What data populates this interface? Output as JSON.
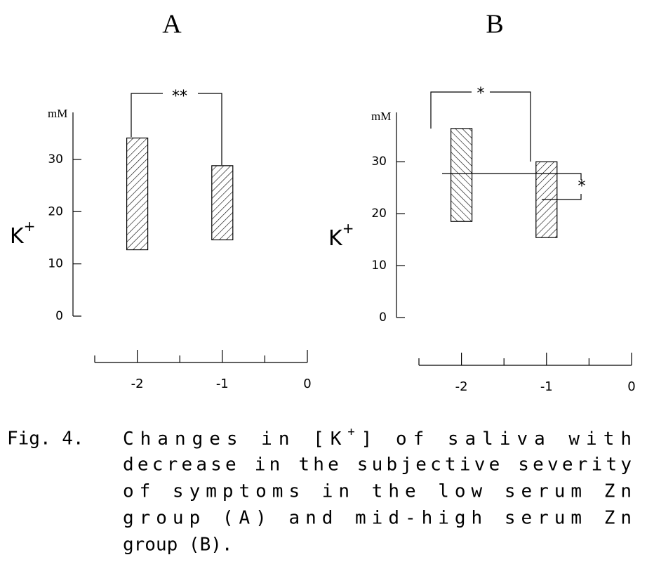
{
  "chart_data": [
    {
      "type": "floating-bar",
      "title": "A",
      "y_unit": "mM",
      "ylabel": {
        "text": "K",
        "sup": "+"
      },
      "ylim": [
        0,
        39
      ],
      "yticks": [
        0,
        10,
        20,
        30
      ],
      "xlim": [
        -2.5,
        0
      ],
      "xticks": [
        -2,
        -1,
        0
      ],
      "xminor_ticks": [
        -2.5,
        -1.5,
        -0.5
      ],
      "x": [
        -2,
        -1
      ],
      "low": [
        12.7,
        14.6
      ],
      "high": [
        34.1,
        28.8
      ],
      "hatch": [
        "/",
        "/"
      ],
      "annotations": [
        "**"
      ]
    },
    {
      "type": "floating-bar",
      "title": "B",
      "y_unit": "mM",
      "ylabel": {
        "text": "K",
        "sup": "+"
      },
      "ylim": [
        0,
        39.5
      ],
      "yticks": [
        0,
        10,
        20,
        30
      ],
      "xlim": [
        -2.5,
        0
      ],
      "xticks": [
        -2,
        -1,
        0
      ],
      "xminor_ticks": [
        -2.5,
        -1.5,
        -0.5
      ],
      "x": [
        -2,
        -1
      ],
      "low": [
        18.5,
        15.4
      ],
      "high": [
        36.4,
        30.0
      ],
      "hatch": [
        "\\",
        "/"
      ],
      "annotations": [
        "*",
        "*"
      ]
    }
  ],
  "caption": {
    "label": "Fig. 4.",
    "line1": [
      "Changes in [K",
      "+",
      "] of saliva  with"
    ],
    "lines": [
      "decrease in the subjective  severity",
      "of symptoms  in  the  low  serum  Zn",
      "group  (A)  and  mid-high  serum  Zn",
      "group (B)."
    ]
  }
}
